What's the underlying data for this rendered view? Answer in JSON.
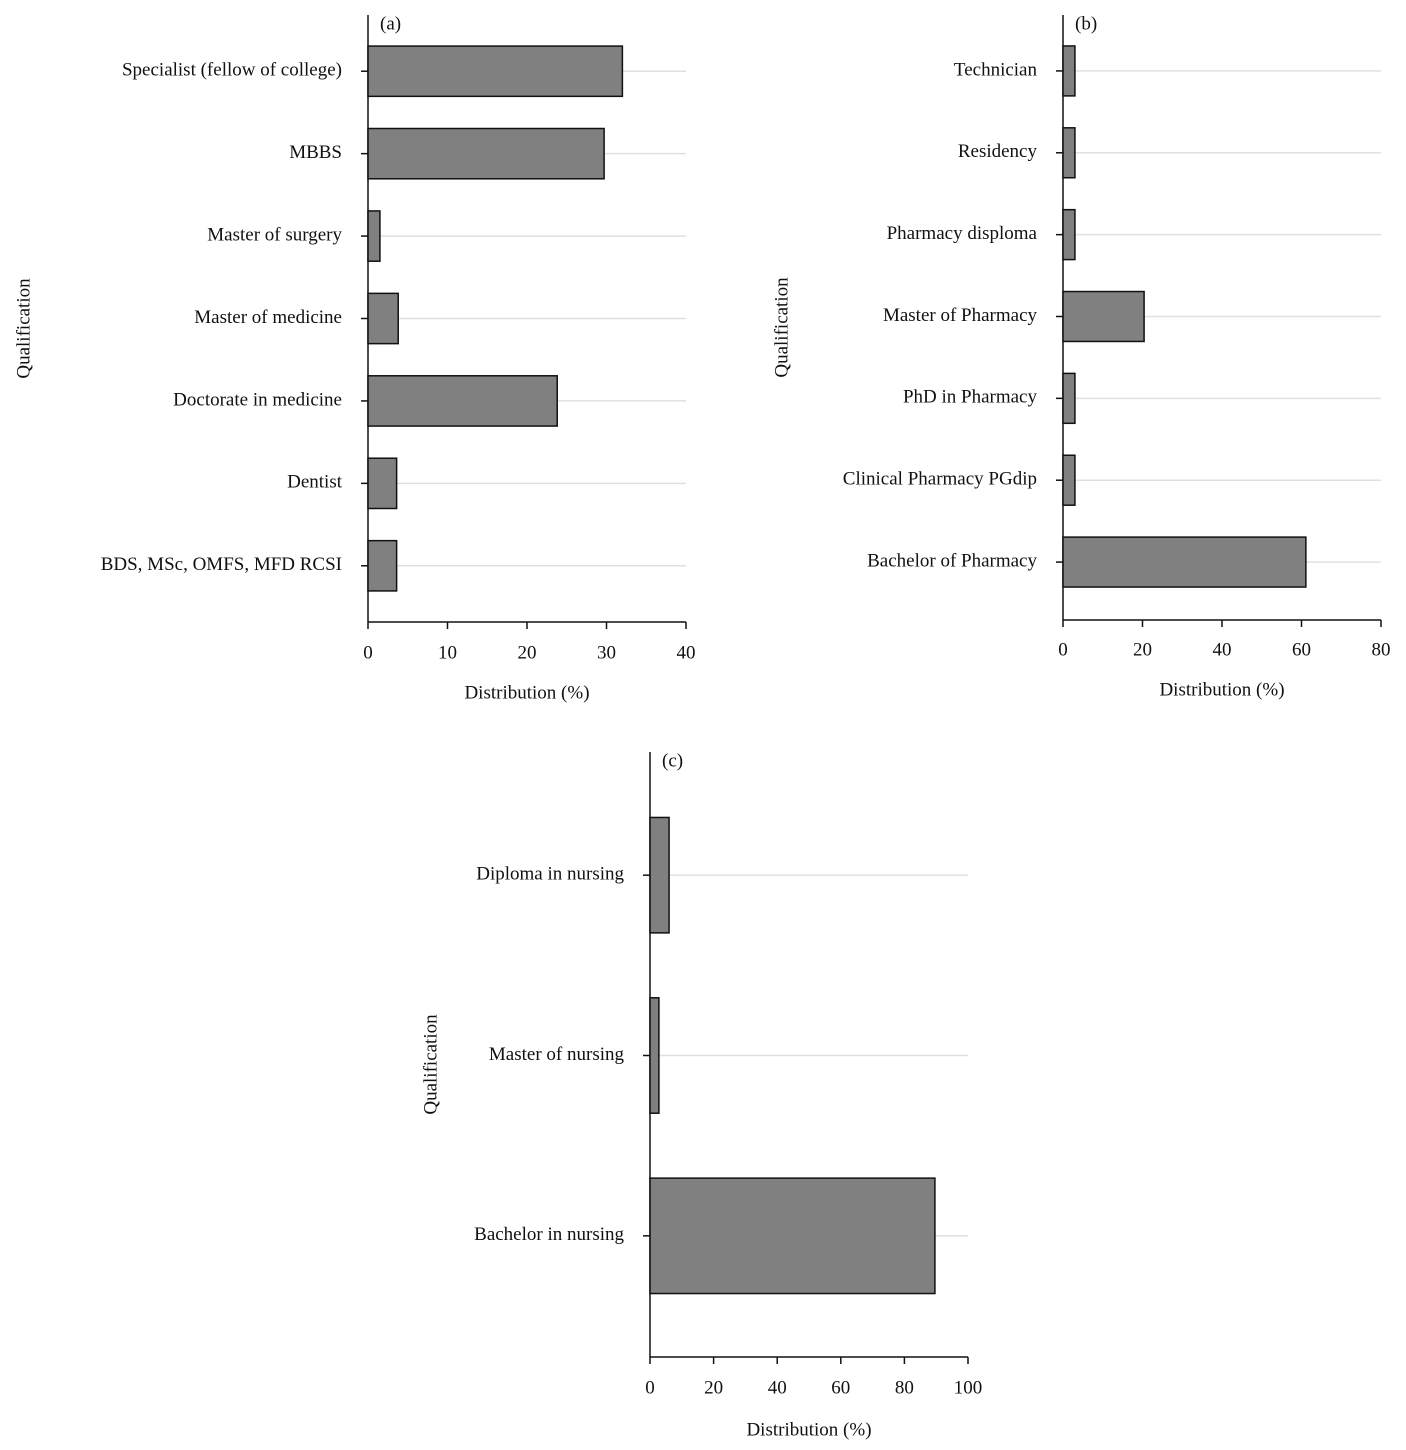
{
  "chart_data": [
    {
      "type": "bar",
      "orientation": "horizontal",
      "panel_label": "(a)",
      "xlabel": "Distribution (%)",
      "ylabel": "Qualification",
      "categories": [
        "Specialist (fellow of college)",
        "MBBS",
        "Master of surgery",
        "Master of medicine",
        "Doctorate in medicine",
        "Dentist",
        "BDS, MSc, OMFS, MFD RCSI"
      ],
      "values": [
        32,
        29.7,
        1.5,
        3.8,
        23.8,
        3.6,
        3.6
      ],
      "color": "#808080",
      "xlim": [
        0,
        40
      ],
      "xticks": [
        0,
        10,
        20,
        30,
        40
      ],
      "grid": true
    },
    {
      "type": "bar",
      "orientation": "horizontal",
      "panel_label": "(b)",
      "xlabel": "Distribution (%)",
      "ylabel": "Qualification",
      "categories": [
        "Technician",
        "Residency",
        "Pharmacy disploma",
        "Master of Pharmacy",
        "PhD in Pharmacy",
        "Clinical Pharmacy PGdip",
        "Bachelor of Pharmacy"
      ],
      "values": [
        3,
        3,
        3,
        20.4,
        3,
        3,
        61.1
      ],
      "color": "#808080",
      "xlim": [
        0,
        80
      ],
      "xticks": [
        0,
        20,
        40,
        60,
        80
      ],
      "grid": true
    },
    {
      "type": "bar",
      "orientation": "horizontal",
      "panel_label": "(c)",
      "xlabel": "Distribution (%)",
      "ylabel": "Qualification",
      "categories": [
        "Diploma in nursing",
        "Master of nursing",
        "Bachelor in nursing"
      ],
      "values": [
        6,
        2.8,
        89.6
      ],
      "color": "#808080",
      "xlim": [
        0,
        100
      ],
      "xticks": [
        0,
        20,
        40,
        60,
        80,
        100
      ],
      "grid": true
    }
  ]
}
